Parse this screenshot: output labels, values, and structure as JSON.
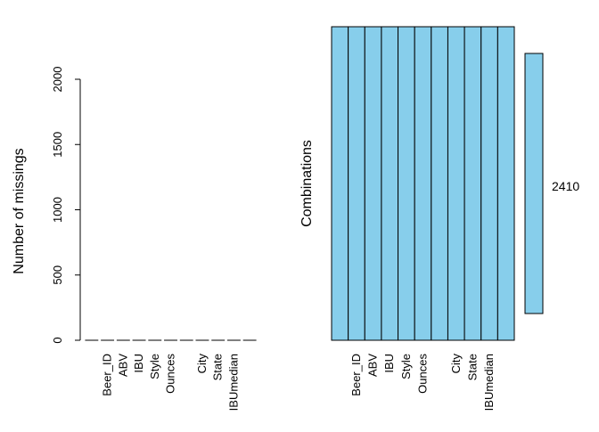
{
  "chart_data": [
    {
      "type": "bar",
      "ylabel": "Number of missings",
      "categories": [
        "",
        "Beer_ID",
        "ABV",
        "IBU",
        "Style",
        "Ounces",
        "",
        "City",
        "State",
        "IBUmedian",
        ""
      ],
      "values": [
        0,
        0,
        0,
        0,
        0,
        0,
        0,
        0,
        0,
        0,
        0
      ],
      "ylim": [
        0,
        2000
      ],
      "yticks": [
        0,
        500,
        1000,
        1500,
        2000
      ],
      "grid": false
    },
    {
      "type": "heatmap",
      "ylabel": "Combinations",
      "columns": [
        "",
        "Beer_ID",
        "ABV",
        "IBU",
        "Style",
        "Ounces",
        "",
        "City",
        "State",
        "IBUmedian",
        ""
      ],
      "combinations": [
        {
          "pattern": [
            0,
            0,
            0,
            0,
            0,
            0,
            0,
            0,
            0,
            0,
            0
          ],
          "count": 2410
        }
      ],
      "cell_color": "#87CEEB",
      "border_color": "#000000"
    }
  ]
}
